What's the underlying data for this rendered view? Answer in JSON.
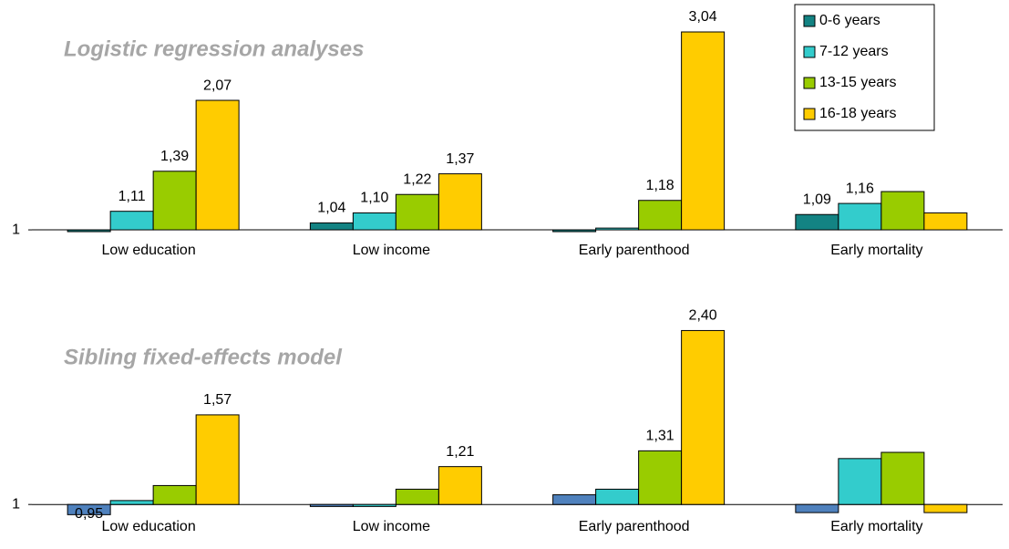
{
  "chart_data": [
    {
      "type": "bar",
      "title": "Logistic regression analyses",
      "categories": [
        "Low education",
        "Low income",
        "Early parenthood",
        "Early mortality"
      ],
      "series": [
        {
          "name": "0-6 years",
          "color": "#138383",
          "values": [
            0.99,
            1.04,
            0.99,
            1.09
          ],
          "value_labels": [
            null,
            "1,04",
            null,
            "1,09"
          ]
        },
        {
          "name": "7-12 years",
          "color": "#33cccc",
          "values": [
            1.11,
            1.1,
            1.01,
            1.16
          ],
          "value_labels": [
            "1,11",
            "1,10",
            null,
            "1,16"
          ]
        },
        {
          "name": "13-15 years",
          "color": "#99cc00",
          "values": [
            1.39,
            1.22,
            1.18,
            1.24
          ],
          "value_labels": [
            "1,39",
            "1,22",
            "1,18",
            null
          ]
        },
        {
          "name": "16-18 years",
          "color": "#ffcc00",
          "values": [
            2.07,
            1.37,
            3.04,
            1.1
          ],
          "value_labels": [
            "2,07",
            "1,37",
            "3,04",
            null
          ]
        }
      ],
      "ylim": [
        0.97,
        3.2
      ],
      "yticks": [
        1
      ],
      "log_scale": true,
      "legend": "top-right"
    },
    {
      "type": "bar",
      "title": "Sibling fixed-effects model",
      "categories": [
        "Low education",
        "Low income",
        "Early parenthood",
        "Early mortality"
      ],
      "series": [
        {
          "color": "#4f81bd",
          "values": [
            0.95,
            0.99,
            1.05,
            0.96
          ],
          "value_labels": [
            "0,95",
            null,
            null,
            null
          ]
        },
        {
          "color": "#33cccc",
          "values": [
            1.02,
            0.99,
            1.08,
            1.26
          ],
          "value_labels": [
            null,
            null,
            null,
            null
          ]
        },
        {
          "color": "#99cc00",
          "values": [
            1.1,
            1.08,
            1.31,
            1.3
          ],
          "value_labels": [
            null,
            null,
            "1,31",
            null
          ]
        },
        {
          "color": "#ffcc00",
          "values": [
            1.57,
            1.21,
            2.4,
            0.96
          ],
          "value_labels": [
            "1,57",
            "1,21",
            "2,40",
            null
          ]
        }
      ],
      "ylim": [
        0.93,
        2.6
      ],
      "yticks": [
        1
      ],
      "log_scale": true
    }
  ]
}
